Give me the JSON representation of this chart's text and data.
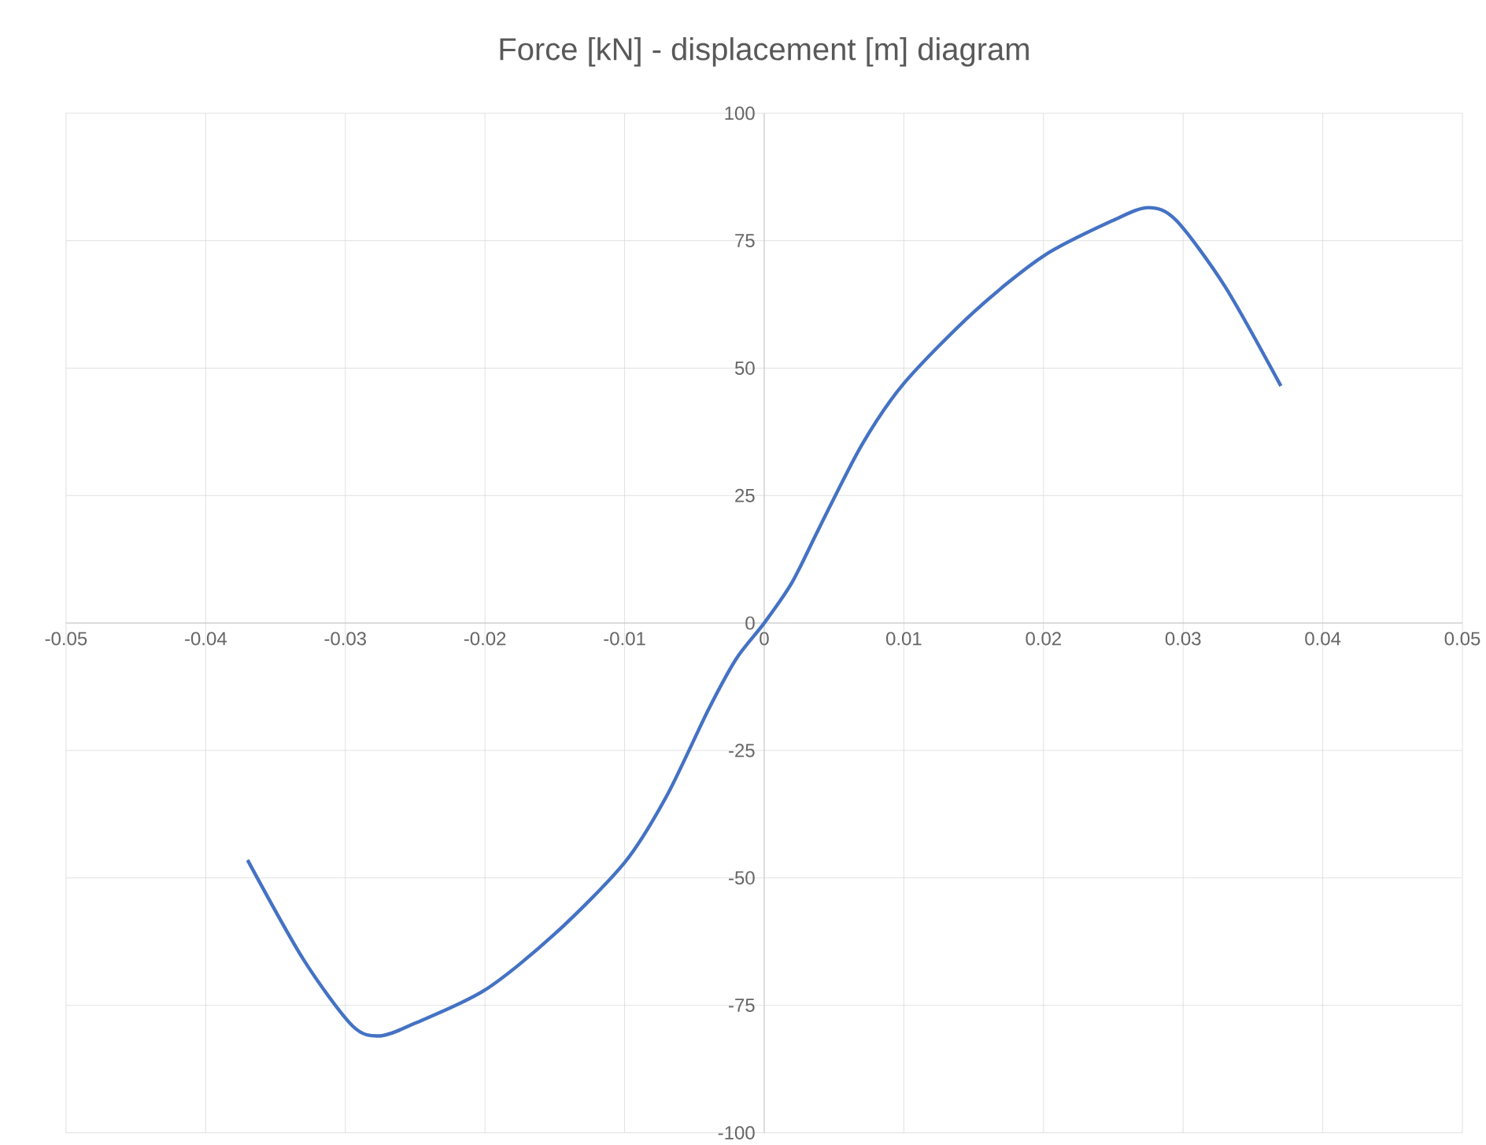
{
  "chart_data": {
    "type": "line",
    "title": "Force [kN] - displacement [m] diagram",
    "x": [
      -0.037,
      -0.033,
      -0.0295,
      -0.0275,
      -0.025,
      -0.02,
      -0.015,
      -0.01,
      -0.007,
      -0.004,
      -0.002,
      0,
      0.002,
      0.004,
      0.007,
      0.01,
      0.015,
      0.02,
      0.025,
      0.0275,
      0.0295,
      0.033,
      0.037
    ],
    "values": [
      -46.5,
      -66,
      -79,
      -81,
      -78.5,
      -72,
      -61,
      -47,
      -34,
      -17,
      -7,
      0,
      8,
      19,
      35,
      47,
      61,
      72,
      79,
      81.5,
      79,
      66,
      46.5
    ],
    "color": "#4472c4",
    "xlim": [
      -0.05,
      0.05
    ],
    "ylim": [
      -100,
      100
    ],
    "xticks": [
      -0.05,
      -0.04,
      -0.03,
      -0.02,
      -0.01,
      0,
      0.01,
      0.02,
      0.03,
      0.04,
      0.05
    ],
    "yticks": [
      -100,
      -75,
      -50,
      -25,
      0,
      25,
      50,
      75,
      100
    ],
    "grid": true
  }
}
